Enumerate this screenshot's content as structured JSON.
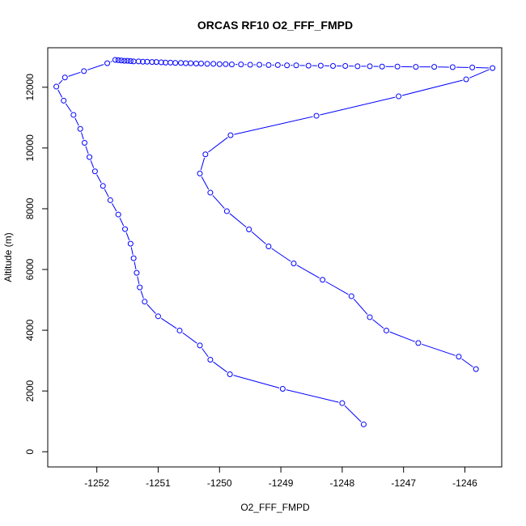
{
  "chart_data": {
    "type": "line",
    "title": "ORCAS RF10 O2_FFF_FMPD",
    "xlabel": "O2_FFF_FMPD",
    "ylabel": "Altitude (m)",
    "xlim": [
      -1252.8,
      -1245.4
    ],
    "ylim": [
      -500,
      13300
    ],
    "x_ticks": [
      -1252,
      -1251,
      -1250,
      -1249,
      -1248,
      -1247,
      -1246
    ],
    "y_ticks": [
      0,
      2000,
      4000,
      6000,
      8000,
      10000,
      12000
    ],
    "grid": false,
    "legend": "none",
    "line_color": "#0000ff",
    "marker": "open-circle",
    "series": [
      {
        "points": [
          [
            -1247.65,
            900
          ],
          [
            -1248.0,
            1600
          ],
          [
            -1248.97,
            2070
          ],
          [
            -1249.83,
            2550
          ],
          [
            -1250.15,
            3030
          ],
          [
            -1250.32,
            3500
          ],
          [
            -1250.65,
            3990
          ],
          [
            -1251.0,
            4460
          ],
          [
            -1251.22,
            4940
          ],
          [
            -1251.3,
            5410
          ],
          [
            -1251.35,
            5890
          ],
          [
            -1251.4,
            6370
          ],
          [
            -1251.45,
            6850
          ],
          [
            -1251.54,
            7330
          ],
          [
            -1251.65,
            7810
          ],
          [
            -1251.78,
            8280
          ],
          [
            -1251.9,
            8750
          ],
          [
            -1252.03,
            9230
          ],
          [
            -1252.12,
            9700
          ],
          [
            -1252.2,
            10170
          ],
          [
            -1252.27,
            10630
          ],
          [
            -1252.38,
            11090
          ],
          [
            -1252.54,
            11560
          ],
          [
            -1252.66,
            12020
          ],
          [
            -1252.52,
            12320
          ],
          [
            -1252.21,
            12530
          ],
          [
            -1251.83,
            12790
          ],
          [
            -1251.7,
            12900
          ],
          [
            -1251.65,
            12890
          ],
          [
            -1251.6,
            12880
          ],
          [
            -1251.55,
            12870
          ],
          [
            -1251.5,
            12870
          ],
          [
            -1251.45,
            12860
          ],
          [
            -1251.4,
            12850
          ],
          [
            -1251.32,
            12850
          ],
          [
            -1251.25,
            12840
          ],
          [
            -1251.18,
            12840
          ],
          [
            -1251.1,
            12830
          ],
          [
            -1251.03,
            12830
          ],
          [
            -1250.95,
            12820
          ],
          [
            -1250.88,
            12810
          ],
          [
            -1250.8,
            12810
          ],
          [
            -1250.72,
            12800
          ],
          [
            -1250.63,
            12800
          ],
          [
            -1250.55,
            12790
          ],
          [
            -1250.47,
            12790
          ],
          [
            -1250.38,
            12780
          ],
          [
            -1250.3,
            12780
          ],
          [
            -1250.2,
            12770
          ],
          [
            -1250.1,
            12770
          ],
          [
            -1250.0,
            12760
          ],
          [
            -1249.9,
            12760
          ],
          [
            -1249.8,
            12750
          ],
          [
            -1249.65,
            12750
          ],
          [
            -1249.5,
            12740
          ],
          [
            -1249.35,
            12740
          ],
          [
            -1249.2,
            12730
          ],
          [
            -1249.05,
            12730
          ],
          [
            -1248.9,
            12720
          ],
          [
            -1248.75,
            12720
          ],
          [
            -1248.55,
            12710
          ],
          [
            -1248.35,
            12710
          ],
          [
            -1248.15,
            12700
          ],
          [
            -1247.95,
            12700
          ],
          [
            -1247.75,
            12690
          ],
          [
            -1247.55,
            12690
          ],
          [
            -1247.35,
            12680
          ],
          [
            -1247.1,
            12680
          ],
          [
            -1246.8,
            12670
          ],
          [
            -1246.5,
            12670
          ],
          [
            -1246.2,
            12660
          ],
          [
            -1245.88,
            12650
          ],
          [
            -1245.55,
            12630
          ],
          [
            -1245.98,
            12260
          ],
          [
            -1247.08,
            11700
          ],
          [
            -1248.42,
            11060
          ],
          [
            -1249.82,
            10420
          ],
          [
            -1250.23,
            9790
          ],
          [
            -1250.32,
            9160
          ],
          [
            -1250.15,
            8530
          ],
          [
            -1249.88,
            7920
          ],
          [
            -1249.52,
            7320
          ],
          [
            -1249.2,
            6760
          ],
          [
            -1248.79,
            6200
          ],
          [
            -1248.32,
            5660
          ],
          [
            -1247.85,
            5120
          ],
          [
            -1247.55,
            4430
          ],
          [
            -1247.28,
            3990
          ],
          [
            -1246.76,
            3580
          ],
          [
            -1246.1,
            3130
          ],
          [
            -1245.82,
            2720
          ]
        ]
      }
    ]
  }
}
